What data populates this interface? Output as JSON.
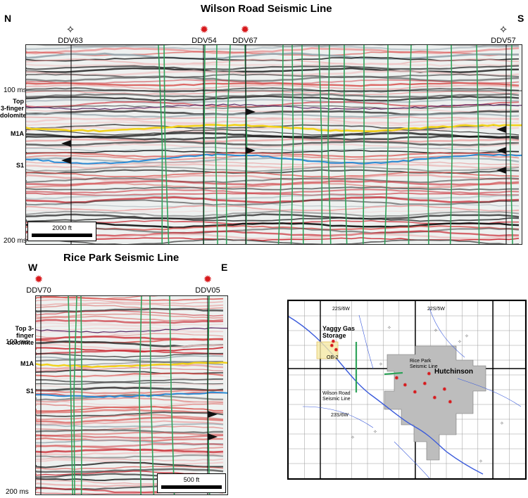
{
  "wilson": {
    "title": "Wilson Road Seismic Line",
    "dir_left": "N",
    "dir_right": "S",
    "wells": [
      {
        "name": "DDV63",
        "symbol": "open"
      },
      {
        "name": "DDV54",
        "symbol": "red"
      },
      {
        "name": "DDV67",
        "symbol": "red"
      },
      {
        "name": "DDV57",
        "symbol": "open"
      }
    ],
    "time_top": "100 ms",
    "time_bottom": "200 ms",
    "horizons": {
      "top": "Top\n3-finger\ndolomite",
      "m1a": "M1A",
      "s1": "S1"
    },
    "scale": "2000 ft"
  },
  "rice": {
    "title": "Rice Park Seismic Line",
    "dir_left": "W",
    "dir_right": "E",
    "wells": [
      {
        "name": "DDV70",
        "symbol": "red"
      },
      {
        "name": "DDV05",
        "symbol": "red"
      }
    ],
    "time_top": "100 ms",
    "time_bottom": "200 ms",
    "horizons": {
      "top": "Top 3-finger\ndolomite",
      "m1a": "M1A",
      "s1": "S1"
    },
    "scale": "500 ft"
  },
  "map": {
    "township_nw": "22S/6W",
    "township_ne": "22S/5W",
    "township_sw": "23S/6W",
    "yaggy": "Yaggy Gas\nStorage",
    "ob2": "OB-2",
    "rice_label": "Rice Park\nSeismic Line",
    "wilson_label": "Wilson Road\nSeismic Line",
    "city": "Hutchinson"
  },
  "colors": {
    "red": "#d7191c",
    "yellow": "#f2d21b",
    "blue": "#2b8cd6",
    "purple": "#5b2a66",
    "green": "#2fa35a",
    "city": "#bdbdbd",
    "river": "#3b5bdb"
  }
}
